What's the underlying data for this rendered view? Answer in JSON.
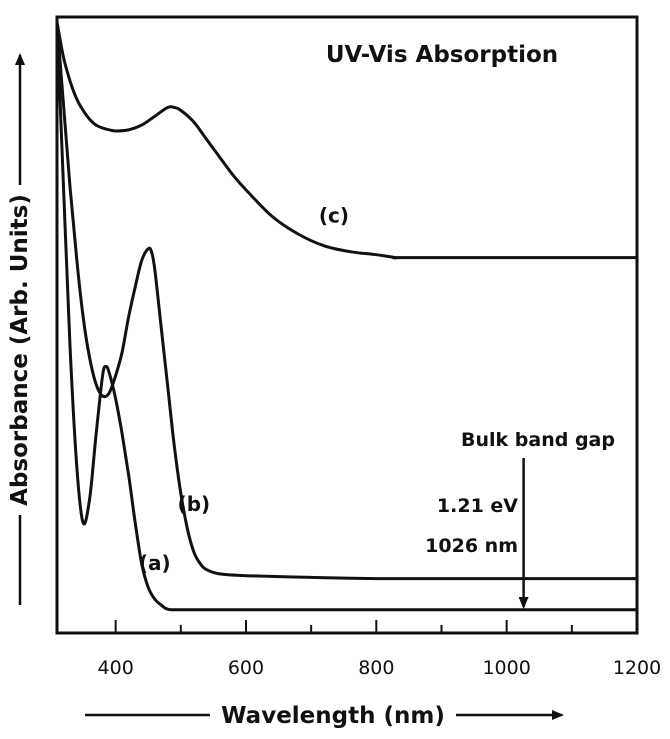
{
  "chart_data": {
    "type": "line",
    "title": "UV-Vis Absorption",
    "xlabel": "Wavelength (nm)",
    "ylabel": "Absorbance (Arb. Units)",
    "xlim": [
      310,
      1200
    ],
    "ylim": [
      0,
      1
    ],
    "xticks": [
      400,
      600,
      800,
      1000,
      1200
    ],
    "xtick_labels": [
      "400",
      "600",
      "800",
      "1000",
      "1200"
    ],
    "minor_xticks": [
      500,
      700,
      900,
      1100
    ],
    "grid": false,
    "series": [
      {
        "name": "(a)",
        "label": "(a)",
        "x": [
          310,
          320,
          330,
          340,
          350,
          360,
          370,
          380,
          385,
          390,
          400,
          410,
          420,
          430,
          440,
          450,
          460,
          470,
          480,
          500,
          600,
          800,
          1000,
          1200
        ],
        "y": [
          1.0,
          0.72,
          0.45,
          0.25,
          0.15,
          0.19,
          0.3,
          0.4,
          0.415,
          0.405,
          0.36,
          0.3,
          0.23,
          0.15,
          0.08,
          0.04,
          0.02,
          0.01,
          0.003,
          0.002,
          0.002,
          0.002,
          0.002,
          0.002
        ],
        "label_at": [
          460,
          0.07
        ]
      },
      {
        "name": "(b)",
        "label": "(b)",
        "x": [
          310,
          320,
          330,
          340,
          350,
          360,
          370,
          380,
          390,
          400,
          410,
          420,
          430,
          440,
          450,
          455,
          460,
          470,
          480,
          490,
          500,
          510,
          520,
          530,
          540,
          560,
          600,
          700,
          800,
          1000,
          1200
        ],
        "y": [
          1.0,
          0.86,
          0.72,
          0.6,
          0.5,
          0.43,
          0.385,
          0.365,
          0.37,
          0.4,
          0.44,
          0.5,
          0.55,
          0.595,
          0.615,
          0.61,
          0.58,
          0.48,
          0.38,
          0.28,
          0.2,
          0.14,
          0.1,
          0.08,
          0.07,
          0.063,
          0.06,
          0.057,
          0.055,
          0.055,
          0.055
        ],
        "label_at": [
          520,
          0.17
        ]
      },
      {
        "name": "(c)",
        "label": "(c)",
        "x": [
          310,
          320,
          330,
          340,
          350,
          360,
          370,
          380,
          390,
          400,
          420,
          440,
          460,
          480,
          490,
          500,
          520,
          540,
          560,
          580,
          600,
          640,
          680,
          720,
          760,
          800,
          830,
          840,
          1000,
          1200
        ],
        "y": [
          1.0,
          0.94,
          0.9,
          0.87,
          0.85,
          0.835,
          0.825,
          0.82,
          0.817,
          0.815,
          0.817,
          0.825,
          0.84,
          0.855,
          0.855,
          0.85,
          0.83,
          0.8,
          0.77,
          0.74,
          0.715,
          0.67,
          0.64,
          0.62,
          0.61,
          0.605,
          0.6,
          0.6,
          0.6,
          0.6
        ],
        "label_at": [
          735,
          0.66
        ]
      }
    ],
    "annotation": {
      "text_line1": "Bulk band gap",
      "text_line2": "1.21 eV",
      "text_line3": "1026 nm",
      "arrow_x": 1026
    }
  }
}
